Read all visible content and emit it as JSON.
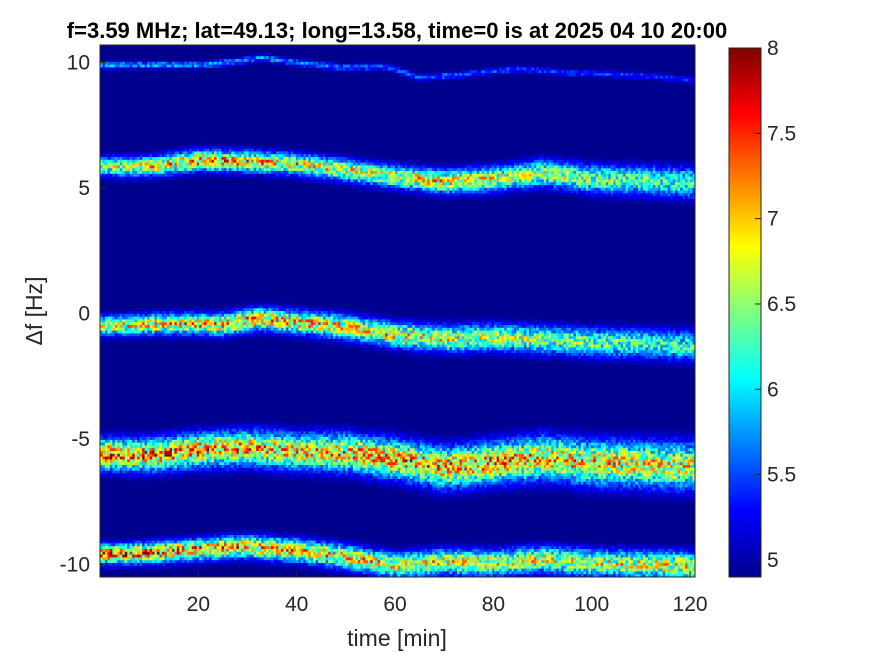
{
  "chart_data": {
    "type": "heatmap",
    "title": "f=3.59 MHz;  lat=49.13; long=13.58, time=0 is at 2025 04 10 20:00",
    "xlabel": "time [min]",
    "ylabel": "Δf [Hz]",
    "xlim": [
      0,
      121
    ],
    "ylim": [
      -10.5,
      10.7
    ],
    "x_ticks": [
      20,
      40,
      60,
      80,
      100,
      120
    ],
    "y_ticks": [
      10,
      5,
      0,
      -5,
      -10
    ],
    "colorbar": {
      "ticks": [
        5,
        5.5,
        6,
        6.5,
        7,
        7.5,
        8
      ],
      "tick_labels": [
        "5",
        "5.5",
        "6",
        "6.5",
        "7",
        "7.5",
        "8"
      ],
      "clim": [
        4.9,
        8.0
      ],
      "colormap": "jet"
    },
    "background_value": 4.9,
    "grid": false,
    "series": [
      {
        "center_line": [
          [
            0,
            9.9
          ],
          [
            10,
            9.9
          ],
          [
            20,
            9.9
          ],
          [
            28,
            10.05
          ],
          [
            33,
            10.2
          ],
          [
            40,
            10.0
          ],
          [
            50,
            9.8
          ],
          [
            58,
            9.85
          ],
          [
            65,
            9.4
          ],
          [
            75,
            9.55
          ],
          [
            85,
            9.75
          ],
          [
            95,
            9.6
          ],
          [
            110,
            9.5
          ],
          [
            121,
            9.3
          ]
        ],
        "intensity": [
          [
            0,
            5.9
          ],
          [
            60,
            5.6
          ],
          [
            121,
            5.4
          ]
        ],
        "spread": [
          [
            0,
            0.12
          ],
          [
            121,
            0.12
          ]
        ]
      },
      {
        "center_line": [
          [
            0,
            5.85
          ],
          [
            10,
            5.85
          ],
          [
            20,
            6.1
          ],
          [
            30,
            6.05
          ],
          [
            40,
            5.95
          ],
          [
            50,
            5.7
          ],
          [
            60,
            5.45
          ],
          [
            70,
            5.25
          ],
          [
            80,
            5.35
          ],
          [
            90,
            5.6
          ],
          [
            100,
            5.35
          ],
          [
            110,
            5.3
          ],
          [
            121,
            5.2
          ]
        ],
        "intensity": [
          [
            0,
            6.5
          ],
          [
            20,
            7.2
          ],
          [
            50,
            6.8
          ],
          [
            70,
            6.9
          ],
          [
            121,
            6.3
          ]
        ],
        "spread": [
          [
            0,
            0.35
          ],
          [
            60,
            0.4
          ],
          [
            121,
            0.55
          ]
        ]
      },
      {
        "center_line": [
          [
            0,
            -0.5
          ],
          [
            15,
            -0.4
          ],
          [
            25,
            -0.45
          ],
          [
            32,
            -0.2
          ],
          [
            40,
            -0.35
          ],
          [
            50,
            -0.55
          ],
          [
            60,
            -0.85
          ],
          [
            70,
            -1.0
          ],
          [
            80,
            -0.95
          ],
          [
            90,
            -1.05
          ],
          [
            100,
            -1.15
          ],
          [
            110,
            -1.2
          ],
          [
            121,
            -1.3
          ]
        ],
        "intensity": [
          [
            0,
            6.8
          ],
          [
            30,
            7.1
          ],
          [
            60,
            6.9
          ],
          [
            121,
            6.2
          ]
        ],
        "spread": [
          [
            0,
            0.35
          ],
          [
            60,
            0.45
          ],
          [
            121,
            0.55
          ]
        ]
      },
      {
        "center_line": [
          [
            0,
            -5.6
          ],
          [
            10,
            -5.65
          ],
          [
            20,
            -5.45
          ],
          [
            30,
            -5.35
          ],
          [
            40,
            -5.5
          ],
          [
            50,
            -5.55
          ],
          [
            60,
            -5.8
          ],
          [
            70,
            -6.15
          ],
          [
            80,
            -5.95
          ],
          [
            90,
            -5.75
          ],
          [
            100,
            -5.95
          ],
          [
            110,
            -6.0
          ],
          [
            121,
            -6.1
          ]
        ],
        "intensity": [
          [
            0,
            7.4
          ],
          [
            40,
            7.0
          ],
          [
            70,
            7.2
          ],
          [
            121,
            6.8
          ]
        ],
        "spread": [
          [
            0,
            0.55
          ],
          [
            60,
            0.7
          ],
          [
            121,
            0.85
          ]
        ]
      },
      {
        "center_line": [
          [
            0,
            -9.6
          ],
          [
            10,
            -9.55
          ],
          [
            20,
            -9.4
          ],
          [
            30,
            -9.3
          ],
          [
            40,
            -9.45
          ],
          [
            50,
            -9.7
          ],
          [
            60,
            -10.05
          ],
          [
            70,
            -9.9
          ],
          [
            80,
            -9.95
          ],
          [
            90,
            -9.8
          ],
          [
            100,
            -9.95
          ],
          [
            110,
            -10.0
          ],
          [
            121,
            -10.05
          ]
        ],
        "intensity": [
          [
            0,
            7.4
          ],
          [
            40,
            7.0
          ],
          [
            80,
            6.8
          ],
          [
            121,
            6.8
          ]
        ],
        "spread": [
          [
            0,
            0.35
          ],
          [
            60,
            0.45
          ],
          [
            121,
            0.5
          ]
        ]
      }
    ]
  }
}
